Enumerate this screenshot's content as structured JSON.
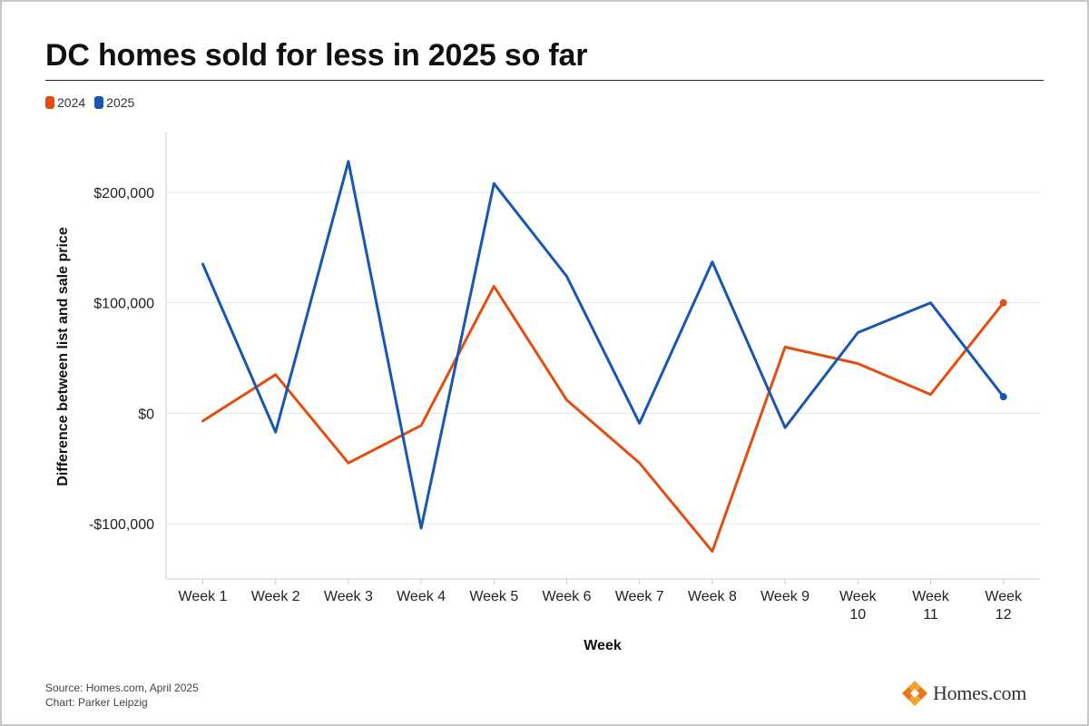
{
  "title": "DC homes sold for less in 2025 so far",
  "footer": {
    "source": "Source: Homes.com, April 2025",
    "credit": "Chart: Parker Leipzig"
  },
  "logo": {
    "text": "Homes.com",
    "icon": "homes-com-diamond-logo"
  },
  "colors": {
    "series_2024": "#e24e0f",
    "series_2025": "#1757b3",
    "grid": "#e6e6e6",
    "axis": "#cccccc"
  },
  "chart_data": {
    "type": "line",
    "title": "DC homes sold for less in 2025 so far",
    "xlabel": "Week",
    "ylabel": "Difference between list and sale price",
    "categories": [
      "Week 1",
      "Week 2",
      "Week 3",
      "Week 4",
      "Week 5",
      "Week 6",
      "Week 7",
      "Week 8",
      "Week 9",
      "Week 10",
      "Week 11",
      "Week 12"
    ],
    "series": [
      {
        "name": "2024",
        "color": "#e24e0f",
        "values": [
          -7000,
          35000,
          -45000,
          -11000,
          115000,
          12000,
          -45000,
          -125000,
          60000,
          45000,
          17000,
          100000
        ]
      },
      {
        "name": "2025",
        "color": "#1757b3",
        "values": [
          135000,
          -17000,
          228000,
          -104000,
          208000,
          124000,
          -9000,
          137000,
          -13000,
          73000,
          100000,
          15000
        ]
      }
    ],
    "y_ticks": [
      -100000,
      0,
      100000,
      200000
    ],
    "y_tick_labels": [
      "-$100,000",
      "$0",
      "$100,000",
      "$200,000"
    ],
    "ylim": [
      -150000,
      255000
    ],
    "grid": true,
    "legend": "top-left",
    "end_markers": true
  }
}
